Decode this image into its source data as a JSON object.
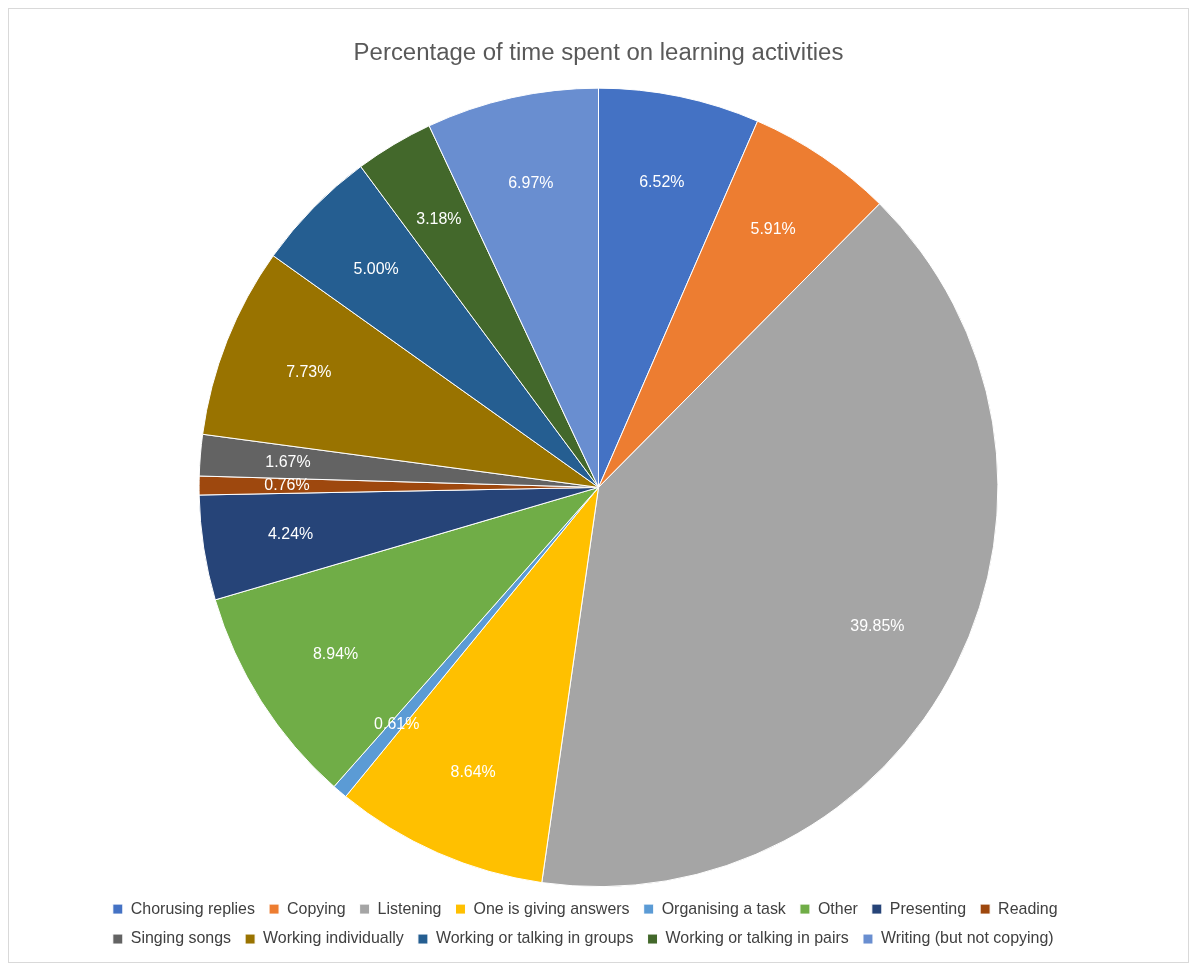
{
  "chart_data": {
    "type": "pie",
    "title": "Percentage of time spent on learning activities",
    "categories": [
      "Chorusing replies",
      "Copying",
      "Listening",
      "One is giving answers",
      "Organising a task",
      "Other",
      "Presenting",
      "Reading",
      "Singing songs",
      "Working individually",
      "Working or talking in groups",
      "Working or talking in pairs",
      "Writing (but not copying)"
    ],
    "values": [
      6.52,
      5.91,
      39.85,
      8.64,
      0.61,
      8.94,
      4.24,
      0.76,
      1.67,
      7.73,
      5.0,
      3.18,
      6.97
    ],
    "value_labels": [
      "6.52%",
      "5.91%",
      "39.85%",
      "8.64%",
      "0.61%",
      "8.94%",
      "4.24%",
      "0.76%",
      "1.67%",
      "7.73%",
      "5.00%",
      "3.18%",
      "6.97%"
    ],
    "colors": [
      "#4472c4",
      "#ed7d31",
      "#a5a5a5",
      "#ffc000",
      "#5b9bd5",
      "#70ad47",
      "#264478",
      "#9e480e",
      "#636363",
      "#997300",
      "#255e91",
      "#43682b",
      "#698ed0"
    ],
    "legend": "bottom"
  }
}
